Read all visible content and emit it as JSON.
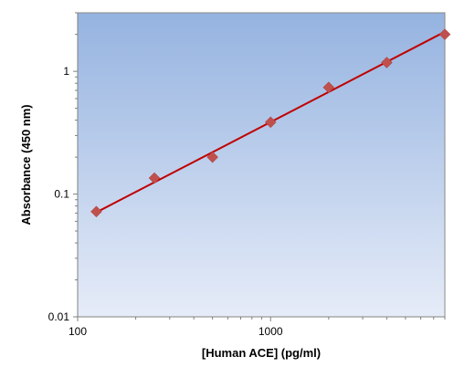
{
  "chart_data": {
    "type": "scatter",
    "title": "",
    "xlabel": "[Human ACE] (pg/ml)",
    "ylabel": "Absorbance (450 nm)",
    "xscale": "log",
    "yscale": "log",
    "xlim": [
      100,
      8000
    ],
    "ylim": [
      0.01,
      3
    ],
    "x_ticks": [
      {
        "value": 100,
        "label": "100"
      },
      {
        "value": 1000,
        "label": "1000"
      }
    ],
    "y_ticks": [
      {
        "value": 0.01,
        "label": "0.01"
      },
      {
        "value": 0.1,
        "label": "0.1"
      },
      {
        "value": 1,
        "label": "1"
      }
    ],
    "grid": false,
    "legend": "none",
    "series": [
      {
        "x": [
          125,
          250,
          500,
          1000,
          2000,
          4000,
          8000
        ],
        "y": [
          0.072,
          0.135,
          0.2,
          0.385,
          0.74,
          1.18,
          2.0
        ],
        "marker": "diamond",
        "color": "#c0504d"
      }
    ],
    "fit_line": {
      "x": [
        125,
        8000
      ],
      "y": [
        0.071,
        2.1
      ],
      "color": "#c00000"
    },
    "background_gradient": [
      "#95b3e0",
      "#e6ecf8"
    ]
  }
}
